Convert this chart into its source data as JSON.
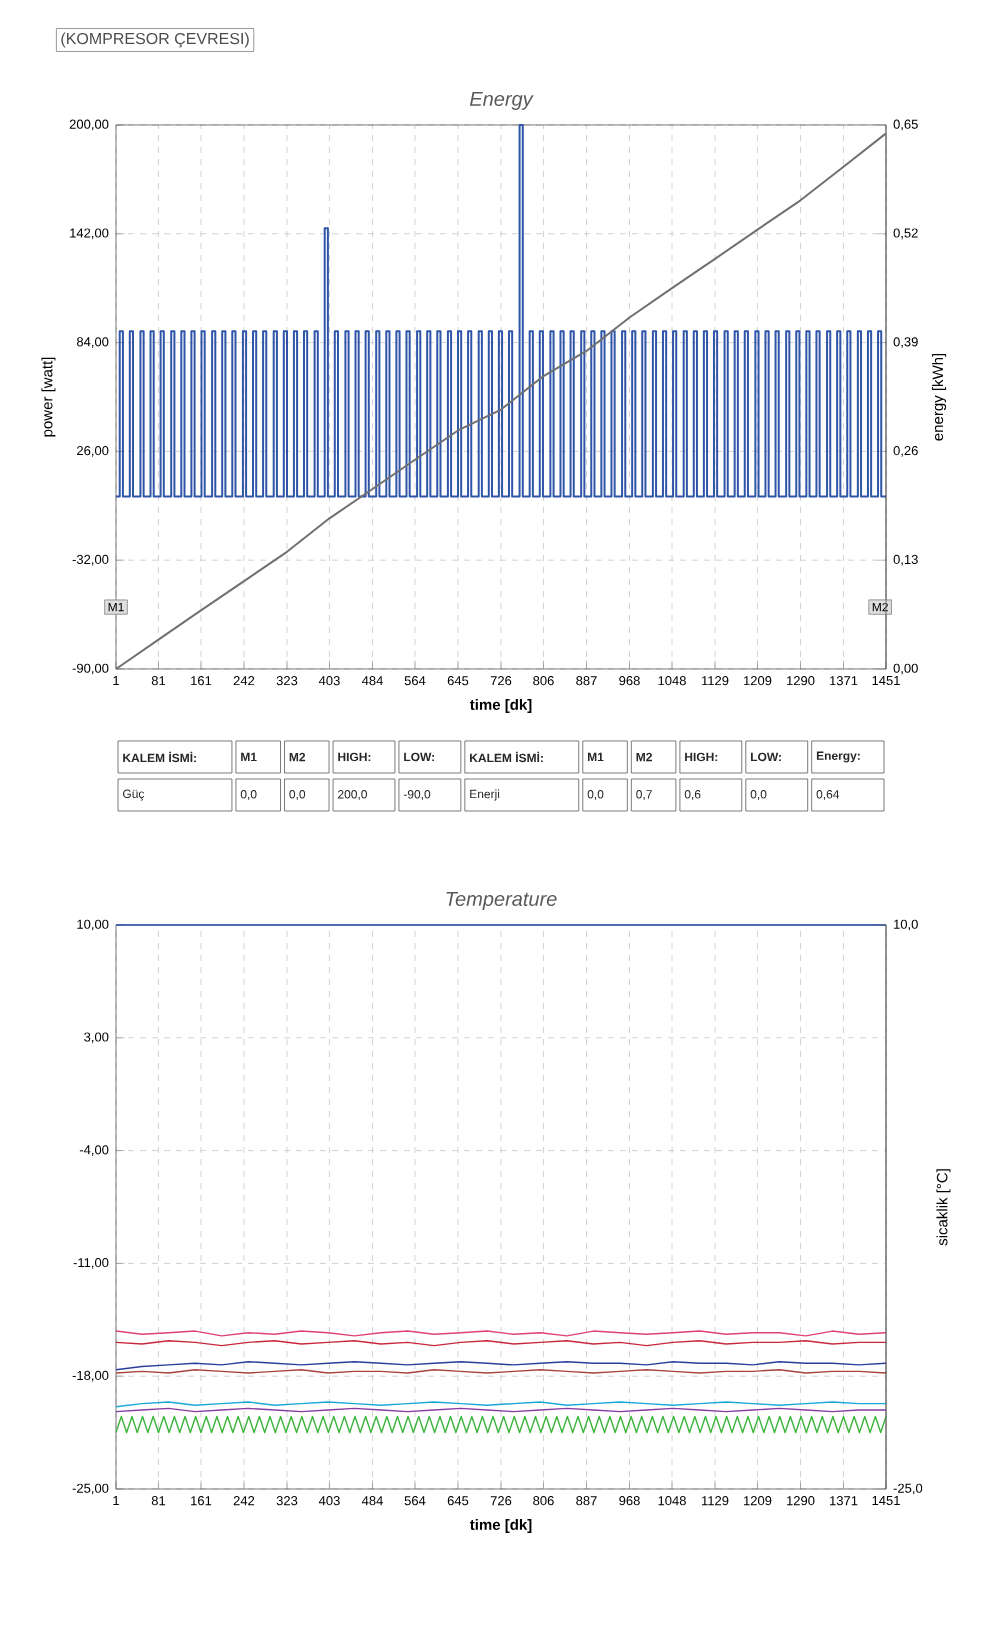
{
  "chart_data": [
    {
      "type": "line",
      "title": "(KOMPRESOR ÇEVRESI)",
      "subtitle": "Energy",
      "xlabel": "time [dk]",
      "ylabel": "power [watt]",
      "y2label": "energy [kWh]",
      "xlim": [
        1,
        1451
      ],
      "xticks": [
        1,
        81,
        161,
        242,
        323,
        403,
        484,
        564,
        645,
        726,
        806,
        887,
        968,
        1048,
        1129,
        1209,
        1290,
        1371,
        1451
      ],
      "ylim": [
        -90,
        200
      ],
      "yticks": [
        {
          "value": -90,
          "label": "-90,00"
        },
        {
          "value": -32,
          "label": "-32,00"
        },
        {
          "value": 26,
          "label": "26,00"
        },
        {
          "value": 84,
          "label": "84,00"
        },
        {
          "value": 142,
          "label": "142,00"
        },
        {
          "value": 200,
          "label": "200,00"
        }
      ],
      "y2lim": [
        0,
        0.65
      ],
      "y2ticks": [
        {
          "value": 0,
          "label": "0,00"
        },
        {
          "value": 0.13,
          "label": "0,13"
        },
        {
          "value": 0.26,
          "label": "0,26"
        },
        {
          "value": 0.39,
          "label": "0,39"
        },
        {
          "value": 0.52,
          "label": "0,52"
        },
        {
          "value": 0.65,
          "label": "0,65"
        }
      ],
      "grid": true,
      "series": [
        {
          "color": "#2f55a8",
          "x": [
            1,
            8,
            8,
            14,
            14,
            27,
            27,
            33,
            33,
            47,
            47,
            53,
            53,
            66,
            66,
            72,
            72,
            85,
            85,
            91,
            91,
            105,
            105,
            111,
            111,
            124,
            124,
            130,
            130,
            143,
            143,
            149,
            149,
            162,
            162,
            168,
            168,
            182,
            182,
            188,
            188,
            201,
            201,
            207,
            207,
            220,
            220,
            226,
            226,
            240,
            240,
            246,
            246,
            259,
            259,
            265,
            265,
            278,
            278,
            284,
            284,
            298,
            298,
            304,
            304,
            317,
            317,
            323,
            323,
            336,
            336,
            342,
            342,
            355,
            355,
            361,
            361,
            375,
            375,
            381,
            381,
            394,
            394,
            400,
            400,
            413,
            413,
            419,
            419,
            433,
            433,
            439,
            439,
            452,
            452,
            458,
            458,
            471,
            471,
            477,
            477,
            491,
            491,
            497,
            497,
            510,
            510,
            516,
            516,
            529,
            529,
            535,
            535,
            548,
            548,
            554,
            554,
            568,
            568,
            574,
            574,
            587,
            587,
            593,
            593,
            606,
            606,
            612,
            612,
            626,
            626,
            632,
            632,
            645,
            645,
            651,
            651,
            664,
            664,
            670,
            670,
            684,
            684,
            690,
            690,
            703,
            703,
            709,
            709,
            722,
            722,
            728,
            728,
            741,
            741,
            747,
            747,
            761,
            761,
            767,
            767,
            780,
            780,
            786,
            786,
            799,
            799,
            805,
            805,
            819,
            819,
            825,
            825,
            838,
            838,
            844,
            844,
            857,
            857,
            863,
            863,
            877,
            877,
            883,
            883,
            896,
            896,
            902,
            902,
            915,
            915,
            921,
            921,
            934,
            934,
            940,
            940,
            954,
            954,
            960,
            960,
            973,
            973,
            979,
            979,
            992,
            992,
            998,
            998,
            1012,
            1012,
            1018,
            1018,
            1031,
            1031,
            1037,
            1037,
            1050,
            1050,
            1056,
            1056,
            1070,
            1070,
            1076,
            1076,
            1089,
            1089,
            1095,
            1095,
            1108,
            1108,
            1114,
            1114,
            1127,
            1127,
            1133,
            1133,
            1147,
            1147,
            1153,
            1153,
            1166,
            1166,
            1172,
            1172,
            1185,
            1185,
            1191,
            1191,
            1205,
            1205,
            1211,
            1211,
            1224,
            1224,
            1230,
            1230,
            1243,
            1243,
            1249,
            1249,
            1263,
            1263,
            1269,
            1269,
            1282,
            1282,
            1288,
            1288,
            1301,
            1301,
            1307,
            1307,
            1320,
            1320,
            1326,
            1326,
            1340,
            1340,
            1346,
            1346,
            1359,
            1359,
            1365,
            1365,
            1378,
            1378,
            1384,
            1384,
            1398,
            1398,
            1404,
            1404,
            1417,
            1417,
            1423,
            1423,
            1436,
            1436,
            1442,
            1442,
            1451
          ],
          "values": [
            2,
            2,
            90,
            90,
            2,
            2,
            90,
            90,
            2,
            2,
            90,
            90,
            2,
            2,
            90,
            90,
            2,
            2,
            90,
            90,
            2,
            2,
            90,
            90,
            2,
            2,
            90,
            90,
            2,
            2,
            90,
            90,
            2,
            2,
            90,
            90,
            2,
            2,
            90,
            90,
            2,
            2,
            90,
            90,
            2,
            2,
            90,
            90,
            2,
            2,
            90,
            90,
            2,
            2,
            90,
            90,
            2,
            2,
            90,
            90,
            2,
            2,
            90,
            90,
            2,
            2,
            90,
            90,
            2,
            2,
            90,
            90,
            2,
            2,
            90,
            90,
            2,
            2,
            90,
            90,
            2,
            2,
            145,
            145,
            2,
            2,
            90,
            90,
            2,
            2,
            90,
            90,
            2,
            2,
            90,
            90,
            2,
            2,
            90,
            90,
            2,
            2,
            90,
            90,
            2,
            2,
            90,
            90,
            2,
            2,
            90,
            90,
            2,
            2,
            90,
            90,
            2,
            2,
            90,
            90,
            2,
            2,
            90,
            90,
            2,
            2,
            90,
            90,
            2,
            2,
            90,
            90,
            2,
            2,
            90,
            90,
            2,
            2,
            90,
            90,
            2,
            2,
            90,
            90,
            2,
            2,
            90,
            90,
            2,
            2,
            90,
            90,
            2,
            2,
            90,
            90,
            2,
            2,
            200,
            200,
            2,
            2,
            90,
            90,
            2,
            2,
            90,
            90,
            2,
            2,
            90,
            90,
            2,
            2,
            90,
            90,
            2,
            2,
            90,
            90,
            2,
            2,
            90,
            90,
            2,
            2,
            90,
            90,
            2,
            2,
            90,
            90,
            2,
            2,
            90,
            90,
            2,
            2,
            90,
            90,
            2,
            2,
            90,
            90,
            2,
            2,
            90,
            90,
            2,
            2,
            90,
            90,
            2,
            2,
            90,
            90,
            2,
            2,
            90,
            90,
            2,
            2,
            90,
            90,
            2,
            2,
            90,
            90,
            2,
            2,
            90,
            90,
            2,
            2,
            90,
            90,
            2,
            2,
            90,
            90,
            2,
            2,
            90,
            90,
            2,
            2,
            90,
            90,
            2,
            2,
            90,
            90,
            2,
            2,
            90,
            90,
            2,
            2,
            90,
            90,
            2,
            2,
            90,
            90,
            2,
            2,
            90,
            90,
            2,
            2,
            90,
            90,
            2,
            2,
            90,
            90,
            2,
            2,
            90,
            90,
            2,
            2,
            90,
            90,
            2,
            2,
            90,
            90,
            2,
            2,
            90,
            90,
            2,
            2,
            90,
            90,
            2,
            2,
            90,
            90,
            2,
            2
          ]
        },
        {
          "color": "#707070",
          "axis": "y2",
          "x": [
            1,
            81,
            161,
            242,
            323,
            403,
            484,
            564,
            645,
            726,
            806,
            887,
            968,
            1048,
            1129,
            1209,
            1290,
            1371,
            1451
          ],
          "values": [
            0,
            0.035,
            0.07,
            0.105,
            0.14,
            0.18,
            0.215,
            0.25,
            0.285,
            0.31,
            0.35,
            0.38,
            0.42,
            0.455,
            0.49,
            0.525,
            0.56,
            0.6,
            0.64
          ]
        }
      ],
      "annotations": [
        "KALEM İSMİ:",
        "M1",
        "M2",
        "HIGH:",
        "LOW:",
        "KALEM İSMİ:",
        "M1",
        "M2",
        "HIGH:",
        "LOW:",
        "Energy:",
        "Güç",
        "0,0",
        "0,0",
        "200,0",
        "-90,0",
        "Enerji",
        "0,0",
        "0,7",
        "0,6",
        "0,0",
        "0,64",
        {
          "text": "M1",
          "x": 1,
          "y": -57
        },
        {
          "text": "M2",
          "x": 1440,
          "y": -57
        }
      ]
    },
    {
      "type": "line",
      "title": "Temperature",
      "xlabel": "time [dk]",
      "y2label": "sicaklik [°C]",
      "xlim": [
        1,
        1451
      ],
      "xticks": [
        1,
        81,
        161,
        242,
        323,
        403,
        484,
        564,
        645,
        726,
        806,
        887,
        968,
        1048,
        1129,
        1209,
        1290,
        1371,
        1451
      ],
      "ylim": [
        -25,
        10
      ],
      "yticks": [
        {
          "value": -25,
          "label": "-25,00"
        },
        {
          "value": -18,
          "label": "-18,00"
        },
        {
          "value": -11,
          "label": "-11,00"
        },
        {
          "value": -4,
          "label": "-4,00"
        },
        {
          "value": 3,
          "label": "3,00"
        },
        {
          "value": 10,
          "label": "10,00"
        }
      ],
      "y2lim": [
        -25,
        10
      ],
      "y2ticks": [
        {
          "value": -25,
          "label": "-25,0"
        },
        {
          "value": 10,
          "label": "10,0"
        }
      ],
      "grid": true,
      "x": [
        1,
        50,
        100,
        150,
        200,
        250,
        300,
        350,
        400,
        450,
        500,
        550,
        600,
        650,
        700,
        750,
        800,
        850,
        900,
        950,
        1000,
        1050,
        1100,
        1150,
        1200,
        1250,
        1300,
        1350,
        1400,
        1450,
        1451
      ],
      "series": [
        {
          "color": "#3050b0",
          "x": [
            1,
            1451
          ],
          "values": [
            10,
            10
          ]
        },
        {
          "color": "#e0407a",
          "values": [
            -15.2,
            -15.4,
            -15.3,
            -15.2,
            -15.5,
            -15.3,
            -15.4,
            -15.2,
            -15.3,
            -15.5,
            -15.3,
            -15.2,
            -15.4,
            -15.3,
            -15.2,
            -15.4,
            -15.3,
            -15.5,
            -15.2,
            -15.3,
            -15.4,
            -15.3,
            -15.2,
            -15.4,
            -15.3,
            -15.3,
            -15.5,
            -15.2,
            -15.4,
            -15.3,
            -15.3
          ]
        },
        {
          "color": "#c8283c",
          "values": [
            -15.9,
            -16.0,
            -15.8,
            -15.9,
            -16.1,
            -15.9,
            -15.8,
            -16.0,
            -15.9,
            -15.8,
            -16.0,
            -15.9,
            -16.1,
            -15.9,
            -15.8,
            -16.0,
            -15.9,
            -15.8,
            -16.0,
            -15.9,
            -16.1,
            -15.9,
            -15.8,
            -16.0,
            -15.9,
            -15.9,
            -15.8,
            -16.0,
            -15.9,
            -15.9,
            -15.9
          ]
        },
        {
          "color": "#2a3f9a",
          "values": [
            -17.6,
            -17.4,
            -17.3,
            -17.2,
            -17.3,
            -17.1,
            -17.2,
            -17.3,
            -17.2,
            -17.1,
            -17.2,
            -17.3,
            -17.2,
            -17.1,
            -17.2,
            -17.3,
            -17.2,
            -17.1,
            -17.2,
            -17.2,
            -17.3,
            -17.1,
            -17.2,
            -17.2,
            -17.3,
            -17.1,
            -17.2,
            -17.2,
            -17.3,
            -17.2,
            -17.2
          ]
        },
        {
          "color": "#a8443c",
          "values": [
            -17.8,
            -17.7,
            -17.8,
            -17.6,
            -17.7,
            -17.8,
            -17.7,
            -17.6,
            -17.8,
            -17.7,
            -17.7,
            -17.8,
            -17.6,
            -17.7,
            -17.8,
            -17.7,
            -17.6,
            -17.7,
            -17.8,
            -17.7,
            -17.6,
            -17.7,
            -17.8,
            -17.7,
            -17.7,
            -17.6,
            -17.8,
            -17.7,
            -17.7,
            -17.8,
            -17.7
          ]
        },
        {
          "color": "#18a8d8",
          "values": [
            -19.9,
            -19.7,
            -19.6,
            -19.8,
            -19.7,
            -19.6,
            -19.8,
            -19.7,
            -19.6,
            -19.7,
            -19.8,
            -19.7,
            -19.6,
            -19.7,
            -19.8,
            -19.7,
            -19.6,
            -19.8,
            -19.7,
            -19.6,
            -19.7,
            -19.8,
            -19.7,
            -19.6,
            -19.7,
            -19.8,
            -19.7,
            -19.6,
            -19.7,
            -19.7,
            -19.7
          ]
        },
        {
          "color": "#8a3aa0",
          "values": [
            -20.2,
            -20.1,
            -20.0,
            -20.2,
            -20.1,
            -20.0,
            -20.1,
            -20.2,
            -20.1,
            -20.0,
            -20.1,
            -20.2,
            -20.1,
            -20.0,
            -20.1,
            -20.2,
            -20.1,
            -20.0,
            -20.1,
            -20.2,
            -20.1,
            -20.0,
            -20.1,
            -20.2,
            -20.1,
            -20.0,
            -20.1,
            -20.2,
            -20.1,
            -20.1,
            -20.1
          ]
        },
        {
          "color": "#3cb43c",
          "x": [
            1,
            11,
            21,
            31,
            41,
            51,
            61,
            71,
            81,
            91,
            101,
            111,
            121,
            131,
            141,
            151,
            161,
            171,
            181,
            191,
            201,
            211,
            221,
            231,
            241,
            251,
            261,
            271,
            281,
            291,
            301,
            311,
            321,
            331,
            341,
            351,
            361,
            371,
            381,
            391,
            401,
            411,
            421,
            431,
            441,
            451,
            461,
            471,
            481,
            491,
            501,
            511,
            521,
            531,
            541,
            551,
            561,
            571,
            581,
            591,
            601,
            611,
            621,
            631,
            641,
            651,
            661,
            671,
            681,
            691,
            701,
            711,
            721,
            731,
            741,
            751,
            761,
            771,
            781,
            791,
            801,
            811,
            821,
            831,
            841,
            851,
            861,
            871,
            881,
            891,
            901,
            911,
            921,
            931,
            941,
            951,
            961,
            971,
            981,
            991,
            1001,
            1011,
            1021,
            1031,
            1041,
            1051,
            1061,
            1071,
            1081,
            1091,
            1101,
            1111,
            1121,
            1131,
            1141,
            1151,
            1161,
            1171,
            1181,
            1191,
            1201,
            1211,
            1221,
            1231,
            1241,
            1251,
            1261,
            1271,
            1281,
            1291,
            1301,
            1311,
            1321,
            1331,
            1341,
            1351,
            1361,
            1371,
            1381,
            1391,
            1401,
            1411,
            1421,
            1431,
            1441,
            1451
          ],
          "values": [
            -21.5,
            -20.5,
            -21.5,
            -20.5,
            -21.5,
            -20.5,
            -21.5,
            -20.5,
            -21.5,
            -20.5,
            -21.5,
            -20.5,
            -21.5,
            -20.5,
            -21.5,
            -20.5,
            -21.5,
            -20.5,
            -21.5,
            -20.5,
            -21.5,
            -20.5,
            -21.5,
            -20.5,
            -21.5,
            -20.5,
            -21.5,
            -20.5,
            -21.5,
            -20.5,
            -21.5,
            -20.5,
            -21.5,
            -20.5,
            -21.5,
            -20.5,
            -21.5,
            -20.5,
            -21.5,
            -20.5,
            -21.5,
            -20.5,
            -21.5,
            -20.5,
            -21.5,
            -20.5,
            -21.5,
            -20.5,
            -21.5,
            -20.5,
            -21.5,
            -20.5,
            -21.5,
            -20.5,
            -21.5,
            -20.5,
            -21.5,
            -20.5,
            -21.5,
            -20.5,
            -21.5,
            -20.5,
            -21.5,
            -20.5,
            -21.5,
            -20.5,
            -21.5,
            -20.5,
            -21.5,
            -20.5,
            -21.5,
            -20.5,
            -21.5,
            -20.5,
            -21.5,
            -20.5,
            -21.5,
            -20.5,
            -21.5,
            -20.5,
            -21.5,
            -20.5,
            -21.5,
            -20.5,
            -21.5,
            -20.5,
            -21.5,
            -20.5,
            -21.5,
            -20.5,
            -21.5,
            -20.5,
            -21.5,
            -20.5,
            -21.5,
            -20.5,
            -21.5,
            -20.5,
            -21.5,
            -20.5,
            -21.5,
            -20.5,
            -21.5,
            -20.5,
            -21.5,
            -20.5,
            -21.5,
            -20.5,
            -21.5,
            -20.5,
            -21.5,
            -20.5,
            -21.5,
            -20.5,
            -21.5,
            -20.5,
            -21.5,
            -20.5,
            -21.5,
            -20.5,
            -21.5,
            -20.5,
            -21.5,
            -20.5,
            -21.5,
            -20.5,
            -21.5,
            -20.5,
            -21.5,
            -20.5,
            -21.5,
            -20.5,
            -21.5,
            -20.5,
            -21.5,
            -20.5,
            -21.5,
            -20.5,
            -21.5,
            -20.5,
            -21.5,
            -20.5,
            -21.5,
            -20.5,
            -21.5,
            -20.5
          ]
        }
      ]
    }
  ]
}
